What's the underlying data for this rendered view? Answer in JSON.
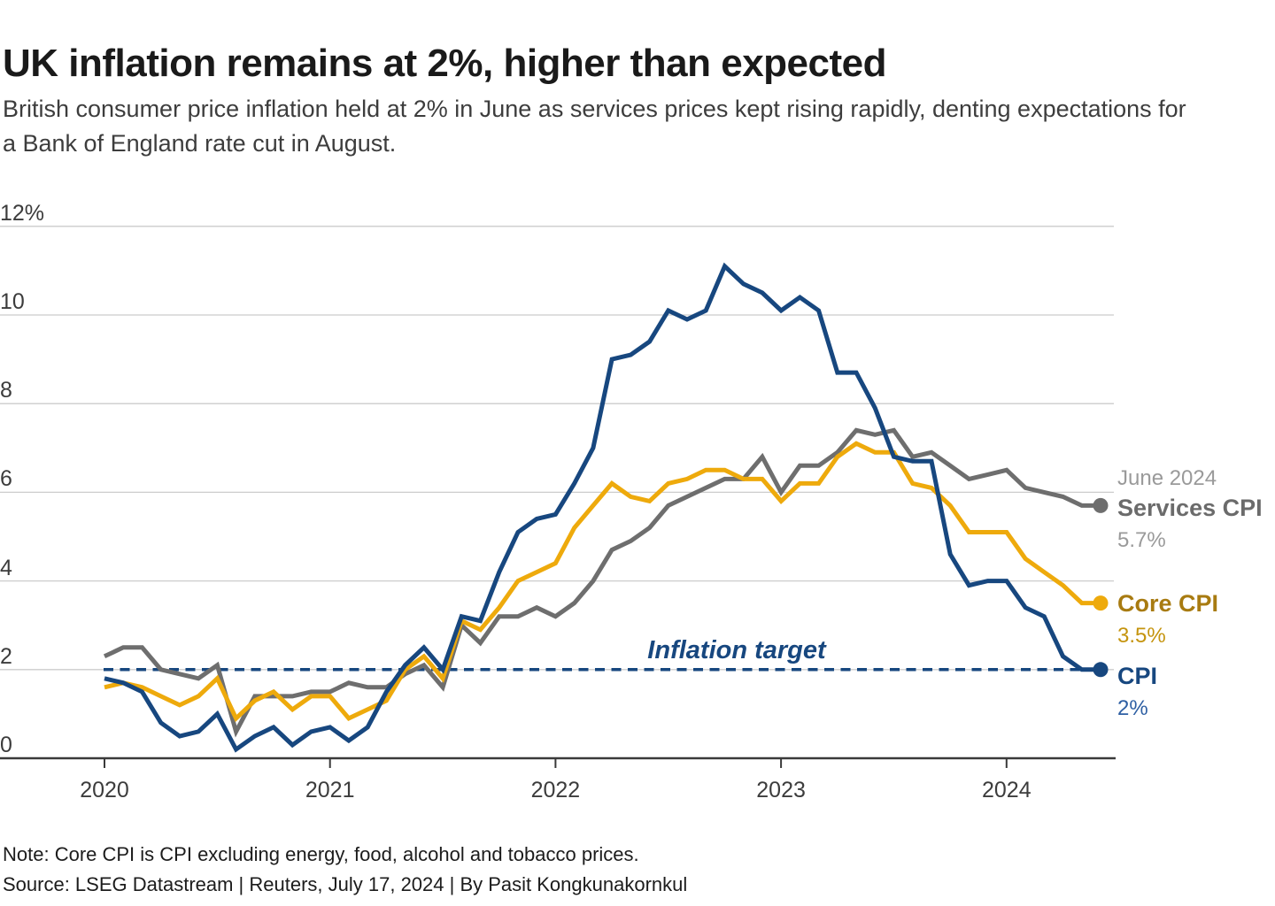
{
  "header": {
    "title": "UK inflation remains at 2%, higher than expected",
    "subtitle_line1": "British consumer price inflation held at 2% in June as services prices kept rising rapidly, denting expectations for",
    "subtitle_line2": "a Bank of England rate cut in August."
  },
  "footer": {
    "note": "Note: Core CPI is CPI excluding energy, food, alcohol and tobacco prices.",
    "source": "Source: LSEG Datastream | Reuters, July 17, 2024 | By Pasit Kongkunakornkul"
  },
  "colors": {
    "cpi_blue": "#17477f",
    "core_gold": "#eeaa0c",
    "services_gray": "#6e6e6e",
    "gridline": "#cccccc",
    "axis": "#3a3a3a"
  },
  "chart_data": {
    "type": "line",
    "title": "UK inflation remains at 2%, higher than expected",
    "xlabel": "",
    "ylabel": "",
    "ylim": [
      0,
      12
    ],
    "grid": true,
    "legend_position": "right",
    "legend_header": "June 2024",
    "x_tick_labels": [
      "2020",
      "2021",
      "2022",
      "2023",
      "2024"
    ],
    "y_tick_labels": [
      "0",
      "2",
      "4",
      "6",
      "8",
      "10",
      "12%"
    ],
    "annotation": {
      "label": "Inflation target",
      "value": 2,
      "style": "dashed"
    },
    "x": [
      "2020-01",
      "2020-02",
      "2020-03",
      "2020-04",
      "2020-05",
      "2020-06",
      "2020-07",
      "2020-08",
      "2020-09",
      "2020-10",
      "2020-11",
      "2020-12",
      "2021-01",
      "2021-02",
      "2021-03",
      "2021-04",
      "2021-05",
      "2021-06",
      "2021-07",
      "2021-08",
      "2021-09",
      "2021-10",
      "2021-11",
      "2021-12",
      "2022-01",
      "2022-02",
      "2022-03",
      "2022-04",
      "2022-05",
      "2022-06",
      "2022-07",
      "2022-08",
      "2022-09",
      "2022-10",
      "2022-11",
      "2022-12",
      "2023-01",
      "2023-02",
      "2023-03",
      "2023-04",
      "2023-05",
      "2023-06",
      "2023-07",
      "2023-08",
      "2023-09",
      "2023-10",
      "2023-11",
      "2023-12",
      "2024-01",
      "2024-02",
      "2024-03",
      "2024-04",
      "2024-05",
      "2024-06"
    ],
    "series": [
      {
        "id": "services-cpi",
        "name": "Services CPI",
        "end_value_label": "5.7%",
        "color": "#6e6e6e",
        "label_color": "#6b6b6b",
        "value_color": "#9a9a9a",
        "values": [
          2.3,
          2.5,
          2.5,
          2.0,
          1.9,
          1.8,
          2.1,
          0.6,
          1.4,
          1.4,
          1.4,
          1.5,
          1.5,
          1.7,
          1.6,
          1.6,
          1.9,
          2.1,
          1.6,
          3.0,
          2.6,
          3.2,
          3.2,
          3.4,
          3.2,
          3.5,
          4.0,
          4.7,
          4.9,
          5.2,
          5.7,
          5.9,
          6.1,
          6.3,
          6.3,
          6.8,
          6.0,
          6.6,
          6.6,
          6.9,
          7.4,
          7.3,
          7.4,
          6.8,
          6.9,
          6.6,
          6.3,
          6.4,
          6.5,
          6.1,
          6.0,
          5.9,
          5.7,
          5.7
        ]
      },
      {
        "id": "core-cpi",
        "name": "Core CPI",
        "end_value_label": "3.5%",
        "color": "#eeaa0c",
        "label_color": "#a87b11",
        "value_color": "#c5940e",
        "values": [
          1.6,
          1.7,
          1.6,
          1.4,
          1.2,
          1.4,
          1.8,
          0.9,
          1.3,
          1.5,
          1.1,
          1.4,
          1.4,
          0.9,
          1.1,
          1.3,
          2.0,
          2.3,
          1.8,
          3.1,
          2.9,
          3.4,
          4.0,
          4.2,
          4.4,
          5.2,
          5.7,
          6.2,
          5.9,
          5.8,
          6.2,
          6.3,
          6.5,
          6.5,
          6.3,
          6.3,
          5.8,
          6.2,
          6.2,
          6.8,
          7.1,
          6.9,
          6.9,
          6.2,
          6.1,
          5.7,
          5.1,
          5.1,
          5.1,
          4.5,
          4.2,
          3.9,
          3.5,
          3.5
        ]
      },
      {
        "id": "cpi",
        "name": "CPI",
        "end_value_label": "2%",
        "color": "#17477f",
        "label_color": "#17477f",
        "value_color": "#2e5fa3",
        "values": [
          1.8,
          1.7,
          1.5,
          0.8,
          0.5,
          0.6,
          1.0,
          0.2,
          0.5,
          0.7,
          0.3,
          0.6,
          0.7,
          0.4,
          0.7,
          1.5,
          2.1,
          2.5,
          2.0,
          3.2,
          3.1,
          4.2,
          5.1,
          5.4,
          5.5,
          6.2,
          7.0,
          9.0,
          9.1,
          9.4,
          10.1,
          9.9,
          10.1,
          11.1,
          10.7,
          10.5,
          10.1,
          10.4,
          10.1,
          8.7,
          8.7,
          7.9,
          6.8,
          6.7,
          6.7,
          4.6,
          3.9,
          4.0,
          4.0,
          3.4,
          3.2,
          2.3,
          2.0,
          2.0
        ]
      }
    ]
  }
}
